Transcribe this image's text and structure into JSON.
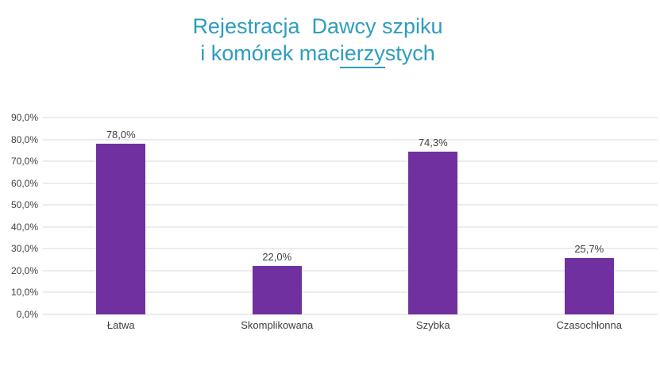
{
  "title": {
    "line1": "Rejestracja  Dawcy szpiku",
    "line2_prefix": "i komórek mac",
    "line2_underline": "ierzy",
    "line2_suffix": "stych"
  },
  "colors": {
    "title": "#2E9DBE",
    "bar": "#7030A0",
    "gridline": "#D9D9D9",
    "axis_text": "#404040"
  },
  "chart_data": {
    "type": "bar",
    "title": "Rejestracja Dawcy szpiku i komórek macierzystych",
    "categories": [
      "Łatwa",
      "Skomplikowana",
      "Szybka",
      "Czasochłonna"
    ],
    "values": [
      78.0,
      22.0,
      74.3,
      25.7
    ],
    "value_labels": [
      "78,0%",
      "22,0%",
      "74,3%",
      "25,7%"
    ],
    "y_ticks": [
      "90,0%",
      "80,0%",
      "70,0%",
      "60,0%",
      "50,0%",
      "40,0%",
      "30,0%",
      "20,0%",
      "10,0%",
      "0,0%"
    ],
    "ylim": [
      0,
      90
    ],
    "xlabel": "",
    "ylabel": "",
    "grid": "horizontal",
    "legend": "none"
  }
}
